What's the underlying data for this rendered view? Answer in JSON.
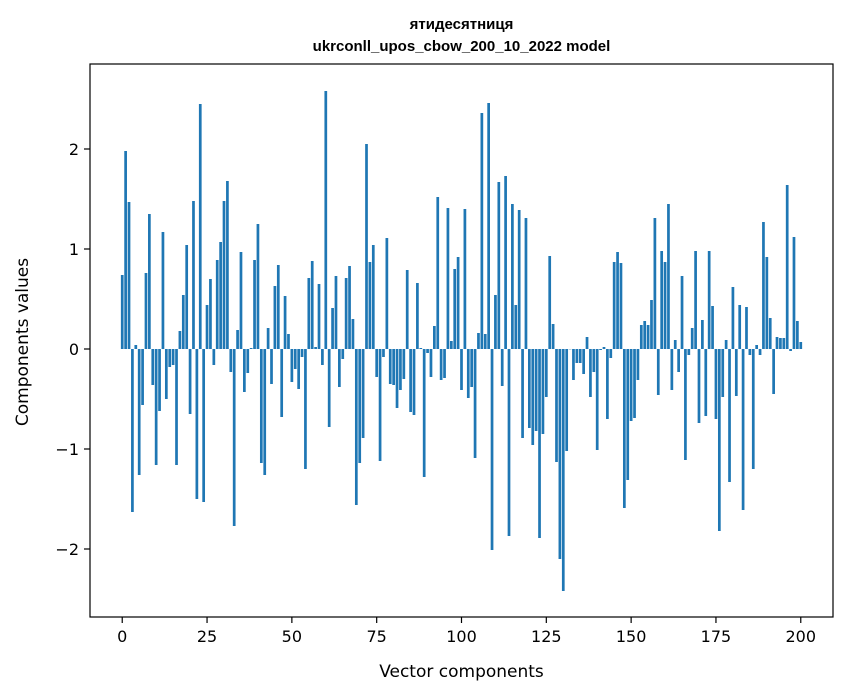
{
  "chart_data": {
    "type": "bar",
    "title_line1": "ятидесятниця",
    "title_line2": "ukrconll_upos_cbow_200_10_2022 model",
    "xlabel": "Vector components",
    "ylabel": "Components values",
    "xlim": [
      -9.5,
      209.5
    ],
    "ylim": [
      -2.68,
      2.85
    ],
    "xticks": [
      0,
      25,
      50,
      75,
      100,
      125,
      150,
      175,
      200
    ],
    "yticks": [
      -2,
      -1,
      0,
      1,
      2
    ],
    "ytick_labels": [
      "−2",
      "−1",
      "0",
      "1",
      "2"
    ],
    "values": [
      0.74,
      1.98,
      1.47,
      -1.63,
      0.04,
      -1.26,
      -0.56,
      0.76,
      1.35,
      -0.36,
      -1.16,
      -0.62,
      1.17,
      -0.5,
      -0.18,
      -0.16,
      -1.16,
      0.18,
      0.54,
      1.04,
      -0.65,
      1.48,
      -1.5,
      2.45,
      -1.53,
      0.44,
      0.7,
      -0.16,
      0.89,
      1.07,
      1.48,
      1.68,
      -0.23,
      -1.77,
      0.19,
      0.97,
      -0.43,
      -0.24,
      0.01,
      0.89,
      1.25,
      -1.14,
      -1.26,
      0.21,
      -0.35,
      0.63,
      0.84,
      -0.68,
      0.53,
      0.15,
      -0.33,
      -0.2,
      -0.4,
      -0.08,
      -1.2,
      0.71,
      0.88,
      0.02,
      0.65,
      -0.16,
      2.58,
      -0.78,
      0.41,
      0.73,
      -0.38,
      -0.1,
      0.71,
      0.83,
      0.3,
      -1.56,
      -1.14,
      -0.89,
      2.05,
      0.87,
      1.04,
      -0.28,
      -1.12,
      -0.08,
      1.11,
      -0.35,
      -0.36,
      -0.59,
      -0.41,
      -0.3,
      0.79,
      -0.63,
      -0.66,
      0.66,
      0.01,
      -1.28,
      -0.04,
      -0.28,
      0.23,
      1.52,
      -0.31,
      -0.29,
      1.41,
      0.08,
      0.8,
      0.92,
      -0.41,
      1.4,
      -0.49,
      -0.38,
      -1.09,
      0.16,
      2.36,
      0.15,
      2.46,
      -2.01,
      0.54,
      1.67,
      -0.37,
      1.73,
      -1.87,
      1.45,
      0.44,
      1.39,
      -0.89,
      1.31,
      -0.79,
      -0.96,
      -0.82,
      -1.89,
      -0.85,
      -0.48,
      0.93,
      0.25,
      -1.13,
      -2.1,
      -2.42,
      -1.02,
      0.0,
      -0.31,
      -0.14,
      -0.14,
      -0.25,
      0.12,
      -0.48,
      -0.23,
      -1.01,
      -0.01,
      0.02,
      -0.7,
      -0.09,
      0.87,
      0.97,
      0.86,
      -1.59,
      -1.31,
      -0.72,
      -0.69,
      -0.31,
      0.24,
      0.28,
      0.24,
      0.49,
      1.31,
      -0.46,
      0.98,
      0.87,
      1.45,
      -0.41,
      0.09,
      -0.23,
      0.73,
      -1.11,
      -0.06,
      0.21,
      0.98,
      -0.74,
      0.29,
      -0.67,
      0.98,
      0.43,
      -0.7,
      -1.82,
      -0.48,
      0.09,
      -1.33,
      0.62,
      -0.47,
      0.44,
      -1.61,
      0.42,
      -0.06,
      -1.2,
      0.04,
      -0.06,
      1.27,
      0.92,
      0.31,
      -0.45,
      0.12,
      0.11,
      0.11,
      1.64,
      -0.02,
      1.12,
      0.28,
      0.07
    ]
  }
}
